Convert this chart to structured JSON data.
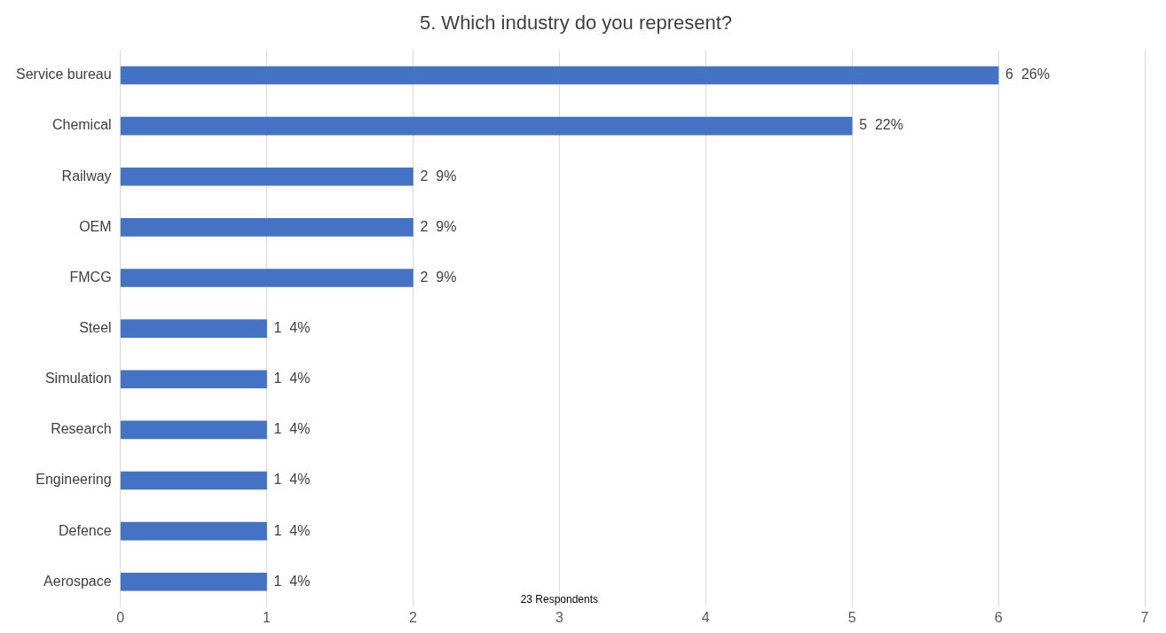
{
  "chart_data": {
    "type": "bar",
    "orientation": "horizontal",
    "title": "5. Which industry do you represent?",
    "categories": [
      "Service bureau",
      "Chemical",
      "Railway",
      "OEM",
      "FMCG",
      "Steel",
      "Simulation",
      "Research",
      "Engineering",
      "Defence",
      "Aerospace"
    ],
    "values": [
      6,
      5,
      2,
      2,
      2,
      1,
      1,
      1,
      1,
      1,
      1
    ],
    "value_labels": [
      "6  26%",
      "5  22%",
      "2  9%",
      "2  9%",
      "2  9%",
      "1  4%",
      "1  4%",
      "1  4%",
      "1  4%",
      "1  4%",
      "1  4%"
    ],
    "color": "#4472c4",
    "xlim": [
      0,
      7
    ],
    "xticks": [
      0,
      1,
      2,
      3,
      4,
      5,
      6,
      7
    ],
    "grid": "x",
    "legend": false,
    "annotations": [
      "23 Respondents"
    ]
  }
}
